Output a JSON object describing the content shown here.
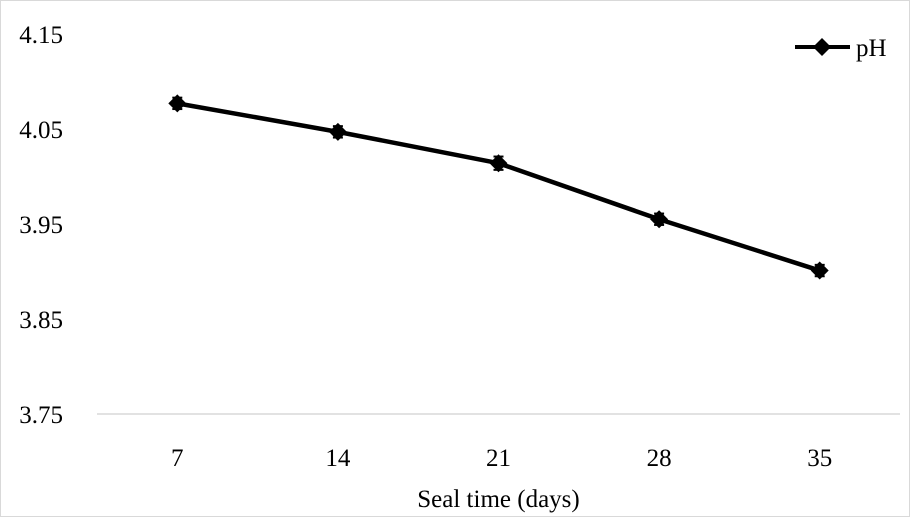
{
  "chart_data": {
    "type": "line",
    "title": "",
    "xlabel": "Seal time (days)",
    "ylabel": "",
    "categories": [
      "7",
      "14",
      "21",
      "28",
      "35"
    ],
    "series": [
      {
        "name": "pH",
        "values": [
          4.077,
          4.047,
          4.014,
          3.955,
          3.901
        ],
        "error": [
          0.006,
          0.006,
          0.007,
          0.006,
          0.006
        ],
        "color": "#000000",
        "marker": "diamond"
      }
    ],
    "ylim": [
      3.75,
      4.15
    ],
    "yticks": [
      "3.75",
      "3.85",
      "3.95",
      "4.05",
      "4.15"
    ],
    "grid": false,
    "legend": "top-right"
  }
}
